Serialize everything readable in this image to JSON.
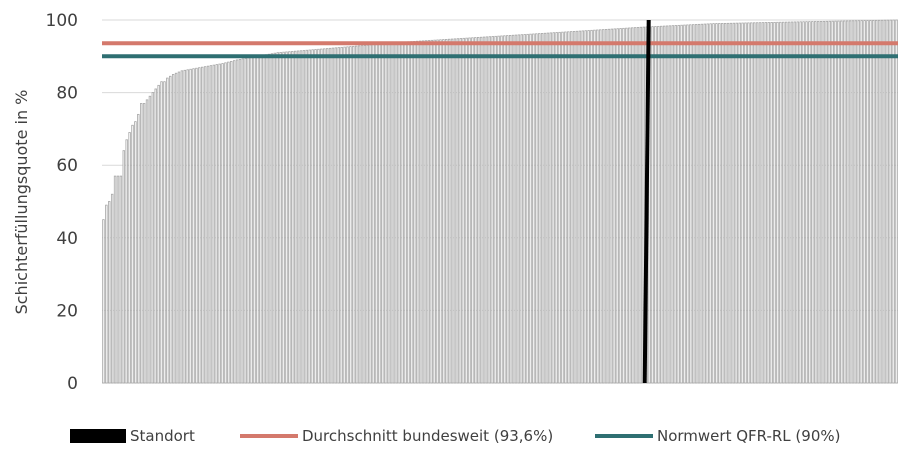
{
  "chart_data": {
    "type": "bar",
    "ylabel": "Schichterfüllungsquote in %",
    "ylim": [
      0,
      100
    ],
    "yticks": [
      "0",
      "20",
      "40",
      "60",
      "80",
      "100"
    ],
    "grid": true,
    "legend_placement": "bottom",
    "bar_count": 274,
    "bar_color": "#a6a6a6",
    "series": [
      {
        "name": "Schichterfüllungsquote",
        "values_anchors": [
          [
            0,
            45
          ],
          [
            1,
            49
          ],
          [
            2,
            50
          ],
          [
            3,
            52
          ],
          [
            4,
            57
          ],
          [
            5,
            57
          ],
          [
            6,
            57
          ],
          [
            7,
            64
          ],
          [
            8,
            67
          ],
          [
            9,
            69
          ],
          [
            10,
            71
          ],
          [
            11,
            72
          ],
          [
            12,
            74
          ],
          [
            13,
            77
          ],
          [
            14,
            77
          ],
          [
            15,
            78
          ],
          [
            16,
            79
          ],
          [
            17,
            80
          ],
          [
            18,
            81
          ],
          [
            19,
            82
          ],
          [
            20,
            83
          ],
          [
            21,
            83
          ],
          [
            22,
            84
          ],
          [
            24,
            85
          ],
          [
            27,
            86
          ],
          [
            34,
            87
          ],
          [
            41,
            88
          ],
          [
            46,
            89
          ],
          [
            53,
            90
          ],
          [
            60,
            91
          ],
          [
            75,
            92
          ],
          [
            90,
            93
          ],
          [
            105,
            94
          ],
          [
            125,
            95
          ],
          [
            145,
            96
          ],
          [
            165,
            97
          ],
          [
            185,
            98
          ],
          [
            210,
            99
          ],
          [
            240,
            99.5
          ],
          [
            273,
            100
          ]
        ]
      }
    ],
    "reference_lines": [
      {
        "name": "Durchschnitt bundesweit (93,6%)",
        "value": 93.6,
        "color": "#d4796c"
      },
      {
        "name": "Normwert QFR-RL (90%)",
        "value": 90,
        "color": "#2e6f72"
      }
    ],
    "highlight": {
      "name": "Standort",
      "index": 187,
      "value": 100,
      "color": "#000000"
    }
  },
  "legend": [
    {
      "label": "Standort",
      "color": "#000000"
    },
    {
      "label": "Durchschnitt bundesweit (93,6%)",
      "color": "#d4796c"
    },
    {
      "label": "Normwert QFR-RL (90%)",
      "color": "#2e6f72"
    }
  ]
}
